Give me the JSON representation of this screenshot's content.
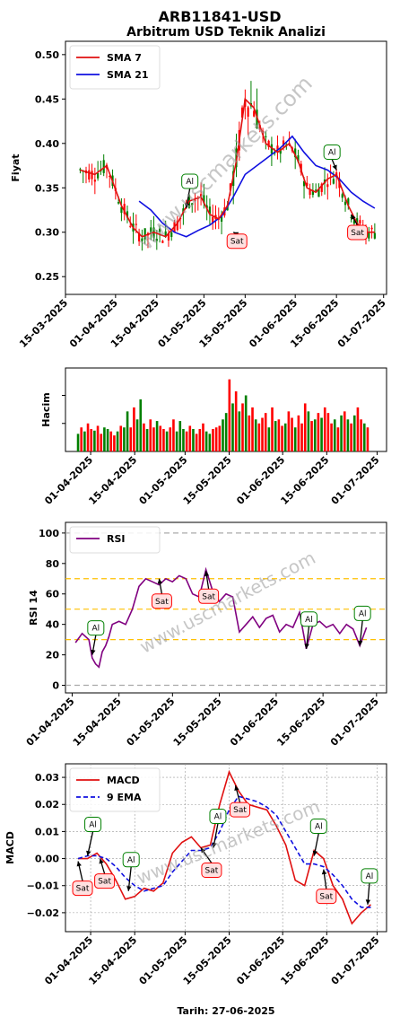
{
  "header": {
    "title": "ARB11841-USD",
    "subtitle": "Arbitrum USD Teknik Analizi",
    "footer": "Tarih: 27-06-2025",
    "watermark": "www.uscmarkets.com"
  },
  "colors": {
    "sma7": "#e01010",
    "sma21": "#1010e0",
    "rsi": "#800080",
    "macd": "#e01010",
    "ema9": "#1010e0",
    "up": "#008000",
    "down": "#ff0000",
    "al_border": "#008000",
    "sat_border": "#ff0000",
    "sat_fill": "#ffe0e0",
    "al_fill": "#ffffff",
    "band": "#ffc000"
  },
  "chart_data": [
    {
      "id": "price",
      "type": "line",
      "ylabel": "Fiyat",
      "ylim": [
        0.23,
        0.515
      ],
      "yticks": [
        0.25,
        0.3,
        0.35,
        0.4,
        0.45,
        0.5
      ],
      "ytick_labels": [
        "0.25",
        "0.30",
        "0.35",
        "0.40",
        "0.45",
        "0.50"
      ],
      "xlim": [
        "2025-03-15",
        "2025-07-02"
      ],
      "xticks": [
        "2025-03-15",
        "2025-04-01",
        "2025-04-15",
        "2025-05-01",
        "2025-05-15",
        "2025-06-01",
        "2025-06-15",
        "2025-07-01"
      ],
      "xtick_labels": [
        "15-03-2025",
        "01-04-2025",
        "15-04-2025",
        "01-05-2025",
        "15-05-2025",
        "01-06-2025",
        "15-06-2025",
        "01-07-2025"
      ],
      "legend_position": "top-left",
      "series": [
        {
          "name": "SMA 7",
          "key": "sma7",
          "x": [
            "2025-03-20",
            "2025-03-25",
            "2025-03-29",
            "2025-04-03",
            "2025-04-07",
            "2025-04-10",
            "2025-04-14",
            "2025-04-18",
            "2025-04-22",
            "2025-04-26",
            "2025-04-30",
            "2025-05-03",
            "2025-05-06",
            "2025-05-09",
            "2025-05-12",
            "2025-05-15",
            "2025-05-18",
            "2025-05-22",
            "2025-05-26",
            "2025-05-30",
            "2025-06-02",
            "2025-06-05",
            "2025-06-08",
            "2025-06-12",
            "2025-06-15",
            "2025-06-19",
            "2025-06-22",
            "2025-06-25",
            "2025-06-28"
          ],
          "values": [
            0.37,
            0.365,
            0.375,
            0.33,
            0.305,
            0.295,
            0.3,
            0.295,
            0.31,
            0.335,
            0.34,
            0.32,
            0.315,
            0.33,
            0.38,
            0.45,
            0.44,
            0.4,
            0.39,
            0.4,
            0.38,
            0.35,
            0.345,
            0.36,
            0.365,
            0.33,
            0.31,
            0.3,
            0.3
          ]
        },
        {
          "name": "SMA 21",
          "key": "sma21",
          "x": [
            "2025-04-09",
            "2025-04-13",
            "2025-04-17",
            "2025-04-21",
            "2025-04-25",
            "2025-04-29",
            "2025-05-03",
            "2025-05-07",
            "2025-05-11",
            "2025-05-15",
            "2025-05-19",
            "2025-05-23",
            "2025-05-27",
            "2025-05-31",
            "2025-06-04",
            "2025-06-08",
            "2025-06-12",
            "2025-06-16",
            "2025-06-20",
            "2025-06-24",
            "2025-06-28"
          ],
          "values": [
            0.335,
            0.325,
            0.31,
            0.3,
            0.295,
            0.302,
            0.308,
            0.318,
            0.34,
            0.365,
            0.375,
            0.385,
            0.395,
            0.408,
            0.39,
            0.375,
            0.37,
            0.36,
            0.345,
            0.335,
            0.327
          ]
        }
      ],
      "signals": [
        {
          "label": "Al",
          "x": "2025-04-25",
          "y": 0.327
        },
        {
          "label": "Sat",
          "x": "2025-05-11",
          "y": 0.3
        },
        {
          "label": "Al",
          "x": "2025-06-15",
          "y": 0.37
        },
        {
          "label": "Sat",
          "x": "2025-06-20",
          "y": 0.32
        }
      ]
    },
    {
      "id": "volume",
      "type": "bar",
      "ylabel": "Hacim",
      "xlim": [
        "2025-03-24",
        "2025-07-04"
      ],
      "xticks": [
        "2025-04-01",
        "2025-04-15",
        "2025-05-01",
        "2025-05-15",
        "2025-06-01",
        "2025-06-15",
        "2025-07-01"
      ],
      "xtick_labels": [
        "01-04-2025",
        "15-04-2025",
        "01-05-2025",
        "15-05-2025",
        "01-06-2025",
        "15-06-2025",
        "01-07-2025"
      ],
      "values": [
        0.22,
        0.3,
        0.25,
        0.35,
        0.28,
        0.26,
        0.32,
        0.22,
        0.3,
        0.28,
        0.25,
        0.2,
        0.25,
        0.32,
        0.3,
        0.5,
        0.3,
        0.55,
        0.4,
        0.65,
        0.35,
        0.28,
        0.4,
        0.3,
        0.38,
        0.32,
        0.28,
        0.25,
        0.3,
        0.4,
        0.25,
        0.38,
        0.28,
        0.25,
        0.32,
        0.28,
        0.22,
        0.28,
        0.35,
        0.25,
        0.22,
        0.28,
        0.3,
        0.32,
        0.4,
        0.48,
        0.9,
        0.6,
        0.75,
        0.5,
        0.6,
        0.7,
        0.45,
        0.55,
        0.4,
        0.35,
        0.42,
        0.48,
        0.3,
        0.55,
        0.38,
        0.4,
        0.32,
        0.35,
        0.5,
        0.42,
        0.3,
        0.45,
        0.35,
        0.6,
        0.5,
        0.38,
        0.4,
        0.48,
        0.42,
        0.55,
        0.48,
        0.35,
        0.4,
        0.3,
        0.45,
        0.5,
        0.4,
        0.35,
        0.45,
        0.55,
        0.4,
        0.35,
        0.3
      ],
      "directions": "gdgrdgrdggrdgrggrdggrgdrgrdgrdgggrdgrdrggdrdggrgdgrgrdgdrrgrgdrgdrgrdrgrgdgrdrgrgdgrgrdgr"
    },
    {
      "id": "rsi",
      "type": "line",
      "ylabel": "RSI 14",
      "ylim": [
        -5,
        107
      ],
      "yticks": [
        0,
        20,
        40,
        60,
        80,
        100
      ],
      "ytick_labels": [
        "0",
        "20",
        "40",
        "60",
        "80",
        "100"
      ],
      "hlines": [
        0,
        30,
        50,
        70,
        100
      ],
      "xlim": [
        "2025-03-30",
        "2025-07-04"
      ],
      "xticks": [
        "2025-04-01",
        "2025-04-15",
        "2025-05-01",
        "2025-05-15",
        "2025-06-01",
        "2025-06-15",
        "2025-07-01"
      ],
      "xtick_labels": [
        "01-04-2025",
        "15-04-2025",
        "01-05-2025",
        "15-05-2025",
        "01-06-2025",
        "15-06-2025",
        "01-07-2025"
      ],
      "legend_position": "top-left",
      "series": [
        {
          "name": "RSI",
          "key": "rsi",
          "x": [
            "2025-04-02",
            "2025-04-04",
            "2025-04-06",
            "2025-04-07",
            "2025-04-08",
            "2025-04-09",
            "2025-04-10",
            "2025-04-11",
            "2025-04-12",
            "2025-04-13",
            "2025-04-15",
            "2025-04-17",
            "2025-04-19",
            "2025-04-21",
            "2025-04-23",
            "2025-04-25",
            "2025-04-27",
            "2025-04-29",
            "2025-05-01",
            "2025-05-03",
            "2025-05-05",
            "2025-05-07",
            "2025-05-09",
            "2025-05-11",
            "2025-05-13",
            "2025-05-15",
            "2025-05-17",
            "2025-05-19",
            "2025-05-21",
            "2025-05-23",
            "2025-05-25",
            "2025-05-27",
            "2025-05-29",
            "2025-05-31",
            "2025-06-02",
            "2025-06-04",
            "2025-06-06",
            "2025-06-08",
            "2025-06-10",
            "2025-06-12",
            "2025-06-14",
            "2025-06-16",
            "2025-06-18",
            "2025-06-20",
            "2025-06-22",
            "2025-06-24",
            "2025-06-26",
            "2025-06-28"
          ],
          "values": [
            28,
            34,
            30,
            18,
            14,
            12,
            22,
            26,
            32,
            40,
            42,
            40,
            50,
            65,
            70,
            68,
            66,
            70,
            68,
            72,
            70,
            60,
            58,
            76,
            62,
            55,
            60,
            58,
            35,
            40,
            45,
            38,
            44,
            46,
            35,
            40,
            38,
            48,
            24,
            40,
            42,
            38,
            40,
            34,
            40,
            37,
            26,
            38
          ]
        }
      ],
      "signals": [
        {
          "label": "Al",
          "x": "2025-04-07",
          "y": 20
        },
        {
          "label": "Sat",
          "x": "2025-04-27",
          "y": 70
        },
        {
          "label": "Sat",
          "x": "2025-05-11",
          "y": 75
        },
        {
          "label": "Al",
          "x": "2025-06-10",
          "y": 24
        },
        {
          "label": "Al",
          "x": "2025-06-26",
          "y": 26
        }
      ]
    },
    {
      "id": "macd",
      "type": "line",
      "ylabel": "MACD",
      "xlabel": "Tarih: 27-06-2025",
      "ylim": [
        -0.027,
        0.035
      ],
      "yticks": [
        -0.02,
        -0.01,
        0.0,
        0.01,
        0.02,
        0.03
      ],
      "ytick_labels": [
        "−0.02",
        "−0.01",
        "0.00",
        "0.01",
        "0.02",
        "0.03"
      ],
      "xlim": [
        "2025-03-24",
        "2025-07-04"
      ],
      "xticks": [
        "2025-04-01",
        "2025-04-15",
        "2025-05-01",
        "2025-05-15",
        "2025-06-01",
        "2025-06-15",
        "2025-07-01"
      ],
      "xtick_labels": [
        "01-04-2025",
        "15-04-2025",
        "01-05-2025",
        "15-05-2025",
        "01-06-2025",
        "15-06-2025",
        "01-07-2025"
      ],
      "grid": true,
      "legend_position": "top-left",
      "series": [
        {
          "name": "MACD",
          "key": "macd",
          "x": [
            "2025-03-28",
            "2025-03-31",
            "2025-04-03",
            "2025-04-06",
            "2025-04-09",
            "2025-04-12",
            "2025-04-15",
            "2025-04-18",
            "2025-04-21",
            "2025-04-24",
            "2025-04-27",
            "2025-04-30",
            "2025-05-03",
            "2025-05-06",
            "2025-05-09",
            "2025-05-12",
            "2025-05-15",
            "2025-05-18",
            "2025-05-21",
            "2025-05-24",
            "2025-05-27",
            "2025-05-30",
            "2025-06-02",
            "2025-06-05",
            "2025-06-08",
            "2025-06-11",
            "2025-06-14",
            "2025-06-17",
            "2025-06-20",
            "2025-06-23",
            "2025-06-26",
            "2025-06-29"
          ],
          "values": [
            0.0,
            0.0,
            0.002,
            -0.002,
            -0.008,
            -0.015,
            -0.014,
            -0.011,
            -0.012,
            -0.009,
            0.002,
            0.006,
            0.008,
            0.004,
            0.005,
            0.02,
            0.032,
            0.025,
            0.02,
            0.019,
            0.018,
            0.012,
            0.005,
            -0.008,
            -0.01,
            0.003,
            0.0,
            -0.01,
            -0.015,
            -0.024,
            -0.02,
            -0.017
          ]
        },
        {
          "name": "9 EMA",
          "key": "ema9",
          "x": [
            "2025-03-28",
            "2025-03-31",
            "2025-04-03",
            "2025-04-06",
            "2025-04-09",
            "2025-04-12",
            "2025-04-15",
            "2025-04-18",
            "2025-04-21",
            "2025-04-24",
            "2025-04-27",
            "2025-04-30",
            "2025-05-03",
            "2025-05-06",
            "2025-05-09",
            "2025-05-12",
            "2025-05-15",
            "2025-05-18",
            "2025-05-21",
            "2025-05-24",
            "2025-05-27",
            "2025-05-30",
            "2025-06-02",
            "2025-06-05",
            "2025-06-08",
            "2025-06-11",
            "2025-06-14",
            "2025-06-17",
            "2025-06-20",
            "2025-06-23",
            "2025-06-26",
            "2025-06-29"
          ],
          "values": [
            0.0,
            0.001,
            0.001,
            0.0,
            -0.003,
            -0.007,
            -0.01,
            -0.012,
            -0.011,
            -0.01,
            -0.005,
            -0.001,
            0.003,
            0.003,
            0.004,
            0.01,
            0.018,
            0.023,
            0.022,
            0.021,
            0.019,
            0.016,
            0.01,
            0.004,
            -0.002,
            -0.002,
            -0.003,
            -0.006,
            -0.01,
            -0.015,
            -0.018,
            -0.018
          ]
        }
      ],
      "signals": [
        {
          "label": "Sat",
          "x": "2025-03-28",
          "y": -0.001
        },
        {
          "label": "Al",
          "x": "2025-03-31",
          "y": 0.001
        },
        {
          "label": "Sat",
          "x": "2025-04-04",
          "y": 0.0
        },
        {
          "label": "Al",
          "x": "2025-04-13",
          "y": -0.012
        },
        {
          "label": "Sat",
          "x": "2025-05-06",
          "y": 0.004
        },
        {
          "label": "Al",
          "x": "2025-05-10",
          "y": 0.004
        },
        {
          "label": "Sat",
          "x": "2025-05-17",
          "y": 0.027
        },
        {
          "label": "Al",
          "x": "2025-06-11",
          "y": 0.001
        },
        {
          "label": "Sat",
          "x": "2025-06-14",
          "y": -0.004
        },
        {
          "label": "Al",
          "x": "2025-06-28",
          "y": -0.017
        }
      ]
    }
  ]
}
